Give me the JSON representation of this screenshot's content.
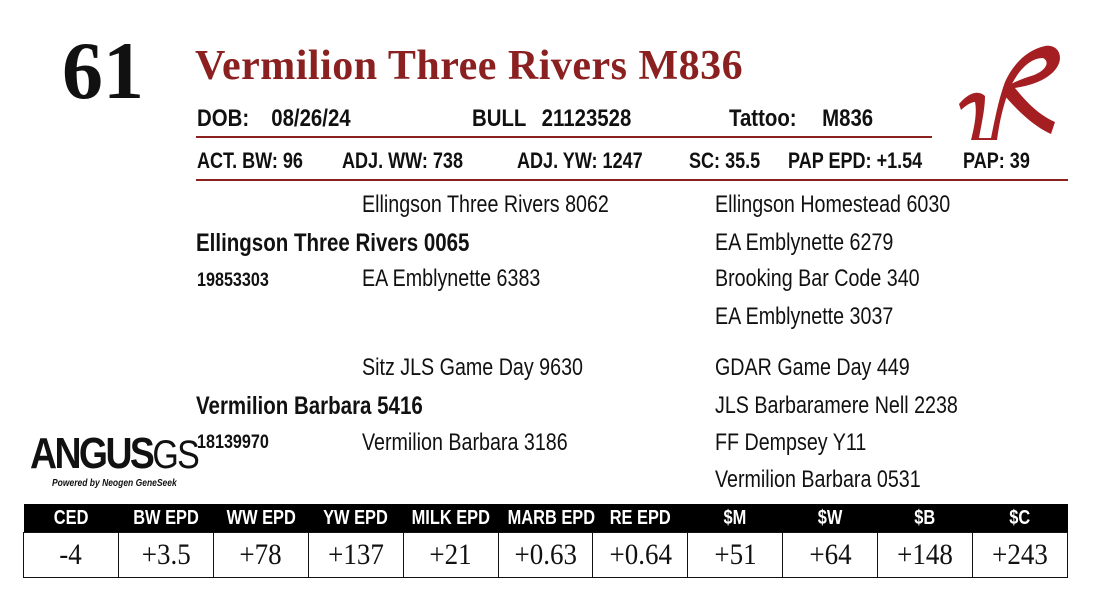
{
  "lot": {
    "number": "61"
  },
  "animal": {
    "name": "Vermilion Three Rivers M836"
  },
  "id_row": {
    "dob_label": "DOB:",
    "dob": "08/26/24",
    "type_label": "BULL",
    "reg_number": "21123528",
    "tattoo_label": "Tattoo:",
    "tattoo": "M836"
  },
  "performance": [
    {
      "label": "ACT. BW:",
      "value": "96"
    },
    {
      "label": "ADJ. WW:",
      "value": "738"
    },
    {
      "label": "ADJ. YW:",
      "value": "1247"
    },
    {
      "label": "SC:",
      "value": "35.5"
    },
    {
      "label": "PAP EPD:",
      "value": "+1.54"
    },
    {
      "label": "PAP:",
      "value": "39"
    }
  ],
  "pedigree": {
    "sire": {
      "name": "Ellingson Three Rivers 0065",
      "reg": "19853303"
    },
    "sire_sire": "Ellingson Three Rivers 8062",
    "sire_dam": "EA Emblynette 6383",
    "sire_sire_sire": "Ellingson Homestead 6030",
    "sire_sire_dam": "EA Emblynette 6279",
    "sire_dam_sire": "Brooking Bar Code 340",
    "sire_dam_dam": "EA Emblynette 3037",
    "dam": {
      "name": "Vermilion Barbara 5416",
      "reg": "18139970"
    },
    "dam_sire": "Sitz JLS Game Day 9630",
    "dam_dam": "Vermilion Barbara 3186",
    "dam_sire_sire": "GDAR Game Day 449",
    "dam_sire_dam": "JLS Barbaramere Nell 2238",
    "dam_dam_sire": "FF Dempsey Y11",
    "dam_dam_dam": "Vermilion Barbara 0531"
  },
  "brand_logo": {
    "icon": "vr-brand-icon",
    "color": "#a51f22"
  },
  "angus_logo": {
    "main": "ANGUS",
    "suffix": "GS",
    "tagline": "Powered by Neogen GeneSeek"
  },
  "epd_table": {
    "headers": [
      "CED",
      "BW EPD",
      "WW EPD",
      "YW EPD",
      "MILK EPD",
      "MARB EPD",
      "RE EPD",
      "$M",
      "$W",
      "$B",
      "$C"
    ],
    "values": [
      "-4",
      "+3.5",
      "+78",
      "+137",
      "+21",
      "+0.63",
      "+0.64",
      "+51",
      "+64",
      "+148",
      "+243"
    ]
  },
  "colors": {
    "title": "#8b2020",
    "rule": "#8b2020",
    "header_bg": "#000000"
  }
}
